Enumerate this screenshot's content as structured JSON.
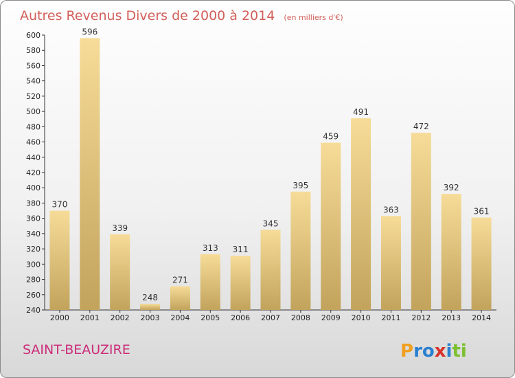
{
  "chart_data": {
    "type": "bar",
    "title": "Autres Revenus Divers de 2000 à 2014",
    "subtitle": "(en milliers d'€)",
    "categories": [
      "2000",
      "2001",
      "2002",
      "2003",
      "2004",
      "2005",
      "2006",
      "2007",
      "2008",
      "2009",
      "2010",
      "2011",
      "2012",
      "2013",
      "2014"
    ],
    "values": [
      370,
      596,
      339,
      248,
      271,
      313,
      311,
      345,
      395,
      459,
      491,
      363,
      472,
      392,
      361
    ],
    "ylim": [
      240,
      600
    ],
    "yticks": [
      240,
      260,
      280,
      300,
      320,
      340,
      360,
      380,
      400,
      420,
      440,
      460,
      480,
      500,
      520,
      540,
      560,
      580,
      600
    ],
    "grid": false,
    "bar_color": "#e8c87a"
  },
  "footer": {
    "commune": "SAINT-BEAUZIRE",
    "brand_letters": [
      {
        "ch": "P",
        "color": "#f0a020"
      },
      {
        "ch": "r",
        "color": "#2a7fd0"
      },
      {
        "ch": "o",
        "color": "#2a7fd0"
      },
      {
        "ch": "x",
        "color": "#d8302a"
      },
      {
        "ch": "i",
        "color": "#2a7fd0"
      },
      {
        "ch": "t",
        "color": "#7cc030"
      },
      {
        "ch": "i",
        "color": "#7cc030"
      }
    ]
  }
}
